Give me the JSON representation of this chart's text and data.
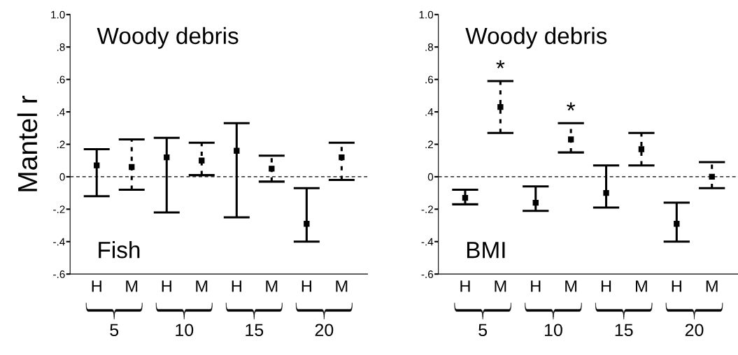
{
  "chart_data": [
    {
      "type": "scatter",
      "ylabel": "Mantel r",
      "categories": [
        "H",
        "M",
        "H",
        "M",
        "H",
        "M",
        "H",
        "M"
      ],
      "series": [
        {
          "color": "#000000",
          "line_style": "solid",
          "values": [
            0.07,
            null,
            0.12,
            null,
            0.16,
            null,
            -0.29,
            null
          ],
          "errors": [
            [
              -0.12,
              0.17
            ],
            null,
            [
              -0.22,
              0.24
            ],
            null,
            [
              -0.25,
              0.33
            ],
            null,
            [
              -0.4,
              -0.07
            ],
            null
          ]
        },
        {
          "color": "#000000",
          "line_style": "dotted",
          "values": [
            null,
            0.06,
            null,
            0.1,
            null,
            0.05,
            null,
            0.12
          ],
          "errors": [
            null,
            [
              -0.08,
              0.23
            ],
            null,
            [
              0.01,
              0.21
            ],
            null,
            [
              -0.03,
              0.13
            ],
            null,
            [
              -0.02,
              0.21
            ]
          ]
        }
      ],
      "marker": "square",
      "ylim": [
        -0.6,
        1.0
      ],
      "yticks": [
        {
          "value": -0.6,
          "label": "-.6"
        },
        {
          "value": -0.4,
          "label": "-.4"
        },
        {
          "value": -0.2,
          "label": "-.2"
        },
        0,
        {
          "value": 0.2,
          "label": ".2"
        },
        {
          "value": 0.4,
          "label": ".4"
        },
        {
          "value": 0.6,
          "label": ".6"
        },
        {
          "value": 0.8,
          "label": ".8"
        },
        {
          "value": 1.0,
          "label": "1.0"
        }
      ],
      "ref_lines": [
        {
          "axis": "y",
          "value": 0,
          "line_style": "dashed",
          "color": "#000000"
        }
      ],
      "annotations": [
        "Woody debris",
        "Fish",
        "5",
        "10",
        "15",
        "20"
      ]
    },
    {
      "type": "scatter",
      "categories": [
        "H",
        "M",
        "H",
        "M",
        "H",
        "M",
        "H",
        "M"
      ],
      "series": [
        {
          "color": "#000000",
          "line_style": "solid",
          "values": [
            -0.13,
            null,
            -0.16,
            null,
            -0.1,
            null,
            -0.29,
            null
          ],
          "errors": [
            [
              -0.17,
              -0.08
            ],
            null,
            [
              -0.21,
              -0.06
            ],
            null,
            [
              -0.19,
              0.07
            ],
            null,
            [
              -0.4,
              -0.16
            ],
            null
          ]
        },
        {
          "color": "#000000",
          "line_style": "dotted",
          "values": [
            null,
            0.43,
            null,
            0.23,
            null,
            0.17,
            null,
            0.0
          ],
          "errors": [
            null,
            [
              0.27,
              0.59
            ],
            null,
            [
              0.15,
              0.33
            ],
            null,
            [
              0.07,
              0.27
            ],
            null,
            [
              -0.07,
              0.09
            ]
          ],
          "value_labels": [
            null,
            "*",
            null,
            "*",
            null,
            null,
            null,
            null
          ]
        }
      ],
      "marker": "square",
      "ylim": [
        -0.6,
        1.0
      ],
      "yticks": [
        {
          "value": -0.6,
          "label": "-.6"
        },
        {
          "value": -0.4,
          "label": "-.4"
        },
        {
          "value": -0.2,
          "label": "-.2"
        },
        0,
        {
          "value": 0.2,
          "label": ".2"
        },
        {
          "value": 0.4,
          "label": ".4"
        },
        {
          "value": 0.6,
          "label": ".6"
        },
        {
          "value": 0.8,
          "label": ".8"
        },
        {
          "value": 1.0,
          "label": "1.0"
        }
      ],
      "ref_lines": [
        {
          "axis": "y",
          "value": 0,
          "line_style": "dashed",
          "color": "#000000"
        }
      ],
      "annotations": [
        "Woody debris",
        "BMI",
        "5",
        "10",
        "15",
        "20"
      ]
    }
  ]
}
